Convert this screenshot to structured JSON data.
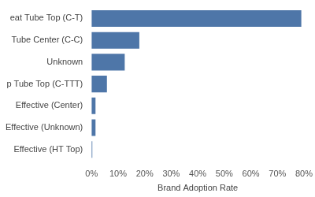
{
  "chart_data": {
    "type": "bar",
    "orientation": "horizontal",
    "x_label": "Brand Adoption Rate",
    "categories": [
      "eat Tube Top (C-T)",
      "Tube Center (C-C)",
      "Unknown",
      "p Tube Top (C-TTT)",
      "Effective (Center)",
      "Effective (Unknown)",
      "Effective (HT Top)"
    ],
    "values": [
      79,
      18,
      12.5,
      5.8,
      1.5,
      1.5,
      0.3
    ],
    "color": "#4e76a8",
    "xlim": [
      0,
      80
    ],
    "xticks": [
      {
        "value": 0,
        "label": "0%"
      },
      {
        "value": 10,
        "label": "10%"
      },
      {
        "value": 20,
        "label": "20%"
      },
      {
        "value": 30,
        "label": "30%"
      },
      {
        "value": 40,
        "label": "40%"
      },
      {
        "value": 50,
        "label": "50%"
      },
      {
        "value": 60,
        "label": "60%"
      },
      {
        "value": 70,
        "label": "70%"
      },
      {
        "value": 80,
        "label": "80%"
      }
    ],
    "grid": false
  }
}
